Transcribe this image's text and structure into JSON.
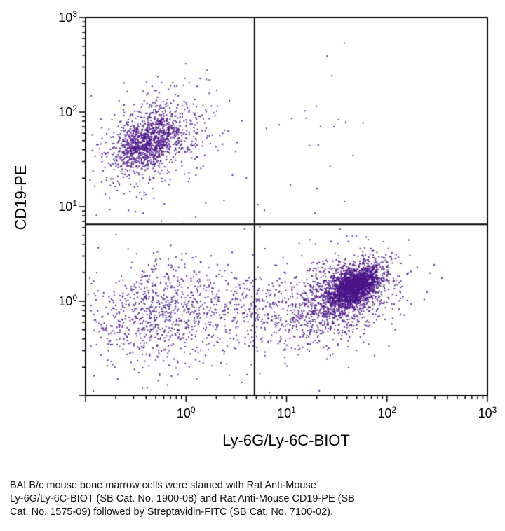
{
  "chart_data": {
    "type": "scatter",
    "subtype": "flow-cytometry-dot-plot",
    "title": "",
    "xlabel": "Ly-6G/Ly-6C-BIOT",
    "ylabel": "CD19-PE",
    "x_scale": "log",
    "y_scale": "log",
    "xlim": [
      0.1,
      1000
    ],
    "ylim": [
      0.1,
      1000
    ],
    "x_tick_exponents": [
      0,
      1,
      2,
      3
    ],
    "y_tick_exponents": [
      0,
      1,
      2,
      3
    ],
    "grid": false,
    "legend": false,
    "axis_color": "#000000",
    "point_color": "#4a1486",
    "gates": {
      "x": 4.8,
      "y": 6.5
    },
    "seed": 7,
    "clusters": [
      {
        "name": "CD19-positive B cells core (upper left)",
        "n": 900,
        "log10_cx": -0.38,
        "log10_cy": 1.7,
        "sx": 0.16,
        "sy": 0.15,
        "rho": 0.45
      },
      {
        "name": "CD19-positive B cells halo",
        "n": 550,
        "log10_cx": -0.3,
        "log10_cy": 1.72,
        "sx": 0.3,
        "sy": 0.26,
        "rho": 0.35
      },
      {
        "name": "Ly-6G-positive granulocytes core (lower right)",
        "n": 1900,
        "log10_cx": 1.68,
        "log10_cy": 0.16,
        "sx": 0.13,
        "sy": 0.11,
        "rho": 0.5
      },
      {
        "name": "Ly-6G-positive granulocytes halo",
        "n": 1200,
        "log10_cx": 1.55,
        "log10_cy": 0.05,
        "sx": 0.28,
        "sy": 0.22,
        "rho": 0.4
      },
      {
        "name": "double-negative cells (lower left)",
        "n": 700,
        "log10_cx": -0.3,
        "log10_cy": -0.12,
        "sx": 0.33,
        "sy": 0.28,
        "rho": 0.15
      },
      {
        "name": "double-negative band (lower middle)",
        "n": 420,
        "log10_cx": 0.55,
        "log10_cy": -0.12,
        "sx": 0.45,
        "sy": 0.26,
        "rho": 0.0
      },
      {
        "name": "double-positive sparse (upper right)",
        "n": 16,
        "log10_cx": 1.4,
        "log10_cy": 1.95,
        "sx": 0.28,
        "sy": 0.22,
        "rho": 0.0
      },
      {
        "name": "background scatter",
        "n": 70,
        "log10_cx": 0.45,
        "log10_cy": 0.55,
        "sx": 0.85,
        "sy": 0.85,
        "rho": 0.0
      }
    ]
  },
  "caption": {
    "lines": [
      "BALB/c mouse bone marrow cells were stained with Rat Anti-Mouse",
      "Ly-6G/Ly-6C-BIOT (SB Cat. No. 1900-08) and Rat Anti-Mouse CD19-PE (SB",
      "Cat. No. 1575-09) followed by Streptavidin-FITC (SB Cat. No. 7100-02)."
    ]
  }
}
